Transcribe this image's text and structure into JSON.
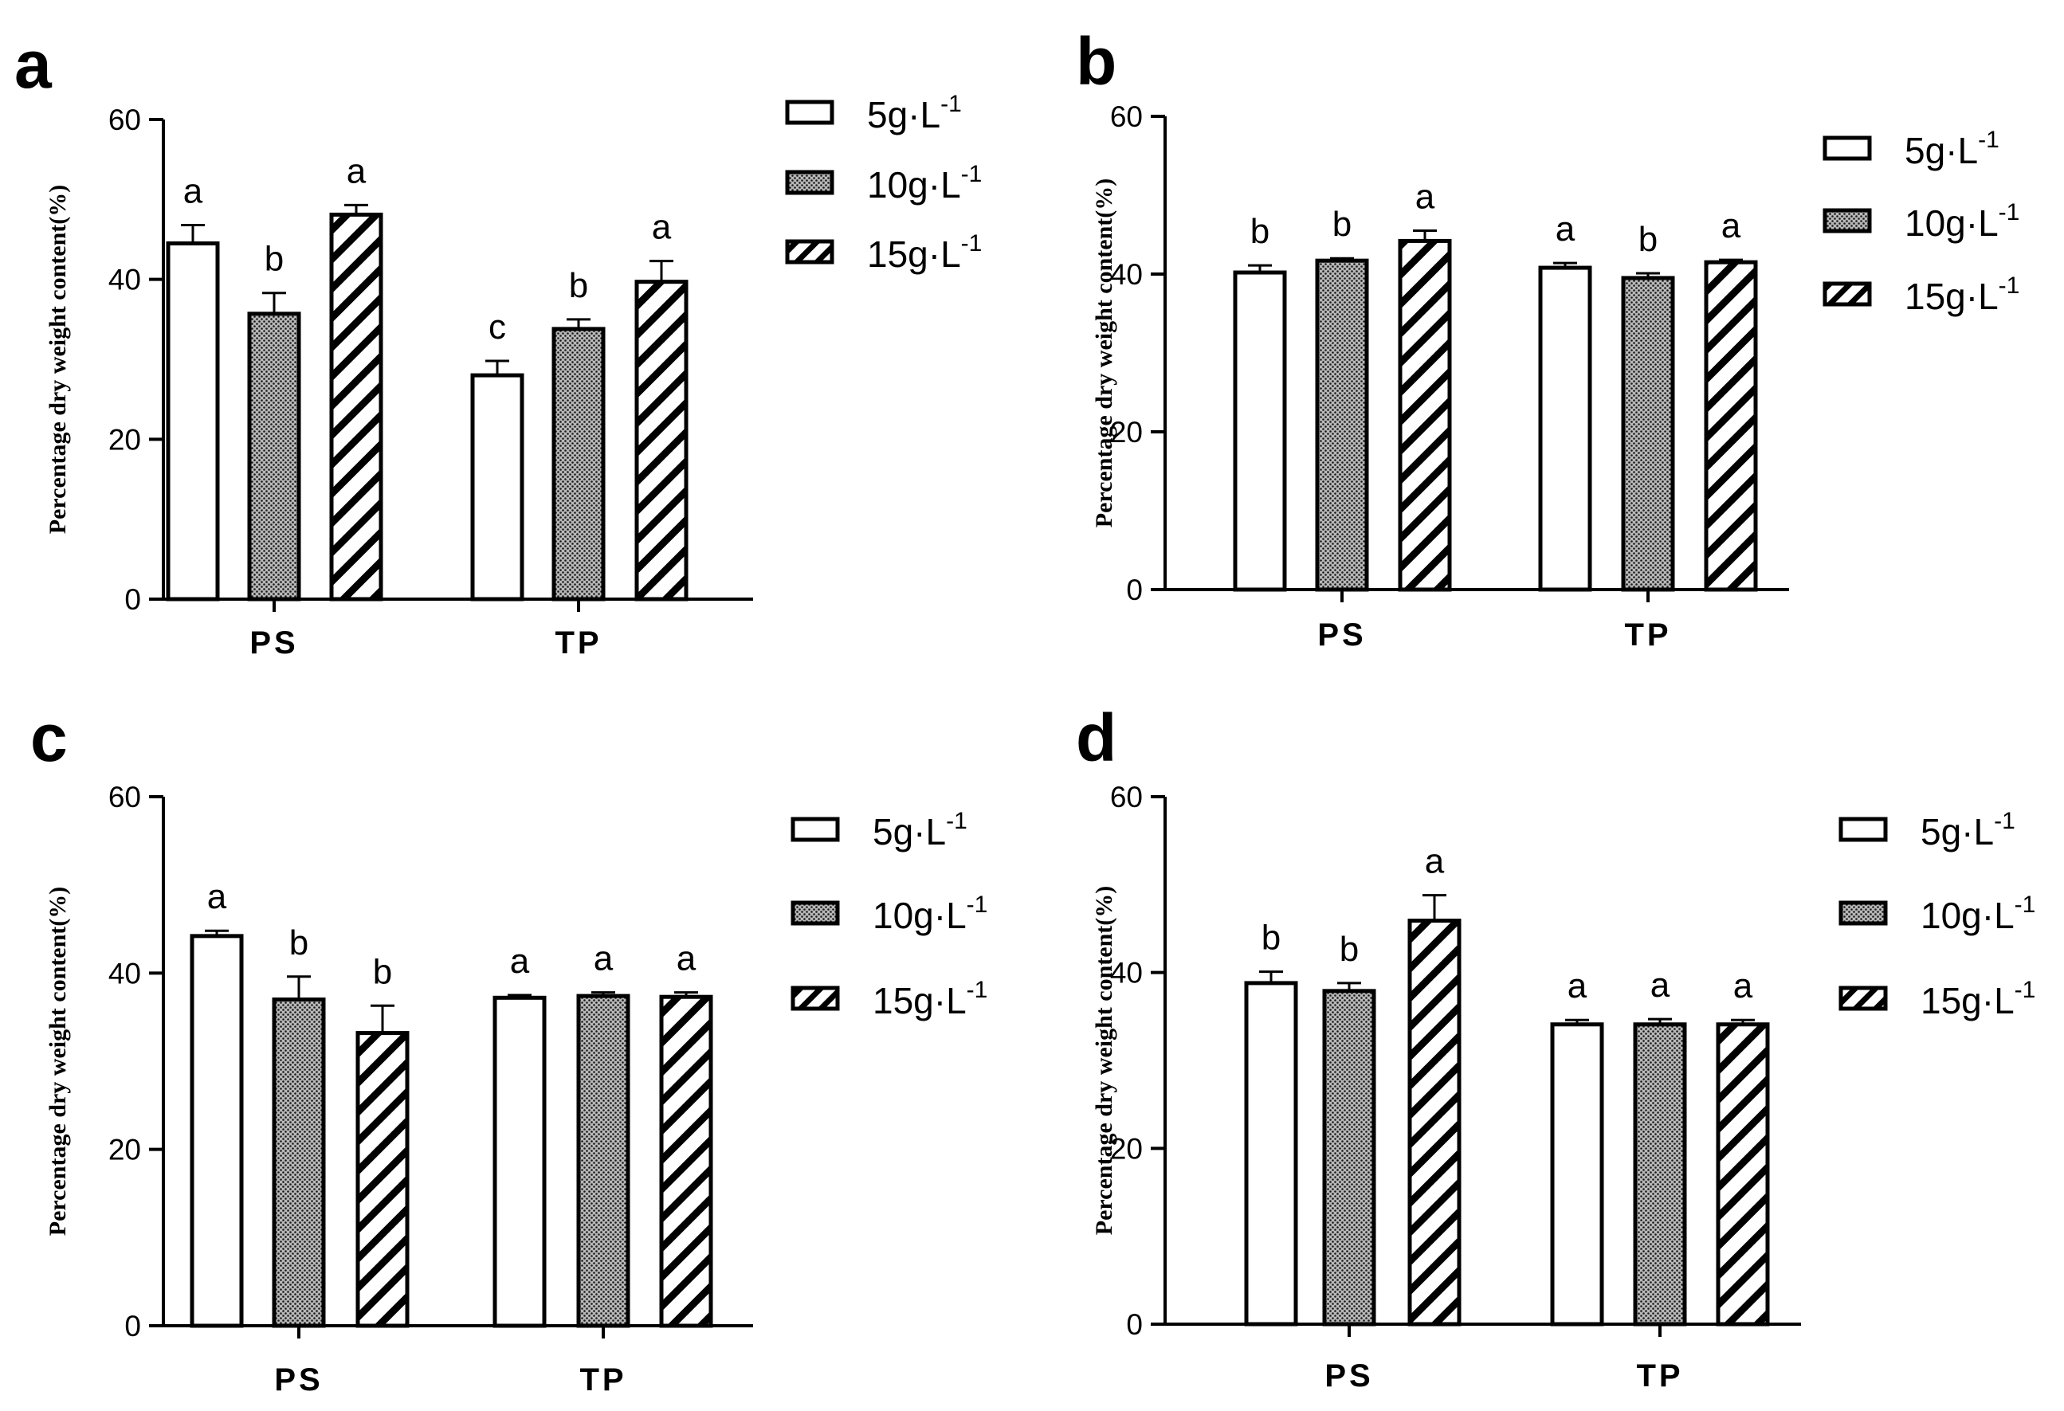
{
  "chart_data": [
    {
      "panel": "a",
      "type": "bar",
      "categories": [
        "PS",
        "TP"
      ],
      "ylabel": "Percentage dry weight content(%)",
      "ylim": [
        0,
        60
      ],
      "yticks": [
        "0",
        "20",
        "40",
        "60"
      ],
      "series": [
        {
          "name": "5g·L-1",
          "pattern": "white",
          "values": [
            44.5,
            28.0
          ],
          "errors": [
            2.3,
            1.8
          ],
          "letters": [
            "a",
            "c"
          ]
        },
        {
          "name": "10g·L-1",
          "pattern": "dots",
          "values": [
            35.7,
            33.8
          ],
          "errors": [
            2.6,
            1.2
          ],
          "letters": [
            "b",
            "b"
          ]
        },
        {
          "name": "15g·L-1",
          "pattern": "hatch",
          "values": [
            48.1,
            39.7
          ],
          "errors": [
            1.2,
            2.6
          ],
          "letters": [
            "a",
            "a"
          ]
        }
      ]
    },
    {
      "panel": "b",
      "type": "bar",
      "categories": [
        "PS",
        "TP"
      ],
      "ylabel": "Percentage dry weight content(%)",
      "ylim": [
        0,
        60
      ],
      "yticks": [
        "0",
        "20",
        "40",
        "60"
      ],
      "series": [
        {
          "name": "5g·L-1",
          "pattern": "white",
          "values": [
            40.2,
            40.8
          ],
          "errors": [
            0.9,
            0.6
          ],
          "letters": [
            "b",
            "a"
          ]
        },
        {
          "name": "10g·L-1",
          "pattern": "dots",
          "values": [
            41.7,
            39.5
          ],
          "errors": [
            0.3,
            0.6
          ],
          "letters": [
            "b",
            "b"
          ]
        },
        {
          "name": "15g·L-1",
          "pattern": "hatch",
          "values": [
            44.2,
            41.5
          ],
          "errors": [
            1.3,
            0.3
          ],
          "letters": [
            "a",
            "a"
          ]
        }
      ]
    },
    {
      "panel": "c",
      "type": "bar",
      "categories": [
        "PS",
        "TP"
      ],
      "ylabel": "Percentage dry weight content(%)",
      "ylim": [
        0,
        60
      ],
      "yticks": [
        "0",
        "20",
        "40",
        "60"
      ],
      "series": [
        {
          "name": "5g·L-1",
          "pattern": "white",
          "values": [
            44.2,
            37.2
          ],
          "errors": [
            0.6,
            0.3
          ],
          "letters": [
            "a",
            "a"
          ]
        },
        {
          "name": "10g·L-1",
          "pattern": "dots",
          "values": [
            37.0,
            37.4
          ],
          "errors": [
            2.6,
            0.4
          ],
          "letters": [
            "b",
            "a"
          ]
        },
        {
          "name": "15g·L-1",
          "pattern": "hatch",
          "values": [
            33.2,
            37.3
          ],
          "errors": [
            3.1,
            0.5
          ],
          "letters": [
            "b",
            "a"
          ]
        }
      ]
    },
    {
      "panel": "d",
      "type": "bar",
      "categories": [
        "PS",
        "TP"
      ],
      "ylabel": "Percentage dry weight content(%)",
      "ylim": [
        0,
        60
      ],
      "yticks": [
        "0",
        "20",
        "40",
        "60"
      ],
      "series": [
        {
          "name": "5g·L-1",
          "pattern": "white",
          "values": [
            38.8,
            34.1
          ],
          "errors": [
            1.3,
            0.5
          ],
          "letters": [
            "b",
            "a"
          ]
        },
        {
          "name": "10g·L-1",
          "pattern": "dots",
          "values": [
            37.9,
            34.1
          ],
          "errors": [
            0.9,
            0.6
          ],
          "letters": [
            "b",
            "a"
          ]
        },
        {
          "name": "15g·L-1",
          "pattern": "hatch",
          "values": [
            45.9,
            34.1
          ],
          "errors": [
            2.9,
            0.5
          ],
          "letters": [
            "a",
            "a"
          ]
        }
      ]
    }
  ],
  "legend": {
    "items": [
      {
        "base": "5g·L",
        "sup": "-1",
        "pattern": "white"
      },
      {
        "base": "10g·L",
        "sup": "-1",
        "pattern": "dots"
      },
      {
        "base": "15g·L",
        "sup": "-1",
        "pattern": "hatch"
      }
    ]
  }
}
